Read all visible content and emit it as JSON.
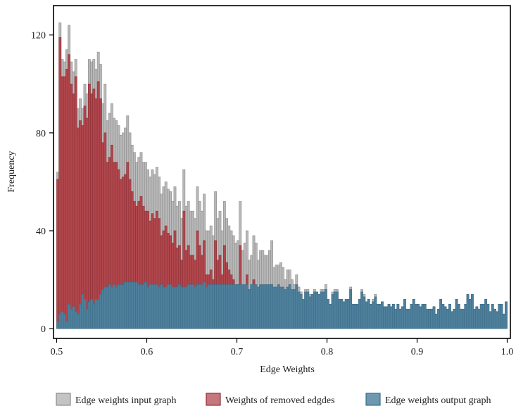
{
  "chart_data": {
    "type": "bar",
    "subtype": "overlapping-histogram",
    "title": "",
    "xlabel": "Edge Weights",
    "ylabel": "Frequency",
    "xlim": [
      0.4965,
      1.0035
    ],
    "ylim": [
      -4,
      132
    ],
    "x_ticks": [
      "0.5",
      "0.6",
      "0.7",
      "0.8",
      "0.9",
      "1.0"
    ],
    "x_tick_values": [
      0.5,
      0.6,
      0.7,
      0.8,
      0.9,
      1.0
    ],
    "y_ticks": [
      "0",
      "40",
      "80",
      "120"
    ],
    "y_tick_values": [
      0,
      40,
      80,
      120
    ],
    "bin_start": 0.5,
    "bin_width": 0.0025,
    "grid": false,
    "legend_position": "bottom",
    "series": [
      {
        "name": "Edge weights input graph",
        "color": "#a6a6a6",
        "values": [
          64,
          125,
          110,
          109,
          114,
          124,
          109,
          105,
          110,
          90,
          94,
          90,
          100,
          96,
          110,
          109,
          110,
          106,
          113,
          108,
          92,
          100,
          85,
          88,
          92,
          86,
          85,
          83,
          79,
          80,
          82,
          87,
          80,
          75,
          72,
          68,
          70,
          72,
          68,
          68,
          65,
          62,
          65,
          63,
          66,
          62,
          55,
          58,
          60,
          57,
          56,
          52,
          58,
          50,
          52,
          45,
          65,
          50,
          52,
          48,
          48,
          45,
          58,
          52,
          48,
          55,
          40,
          40,
          42,
          38,
          56,
          45,
          48,
          40,
          52,
          45,
          42,
          40,
          38,
          35,
          36,
          52,
          32,
          35,
          40,
          28,
          30,
          38,
          35,
          28,
          32,
          32,
          30,
          30,
          32,
          36,
          25,
          26,
          26,
          27,
          25,
          20,
          24,
          24,
          20,
          18,
          22,
          17,
          15,
          12,
          16,
          16,
          14,
          14,
          16,
          15,
          14,
          16,
          16,
          18,
          12,
          10,
          15,
          16,
          16,
          12,
          12,
          11,
          12,
          12,
          17,
          10,
          10,
          10,
          12,
          16,
          14,
          11,
          12,
          10,
          12,
          14,
          10,
          10,
          11,
          9,
          9,
          10,
          9,
          10,
          8,
          10,
          8,
          9,
          12,
          8,
          8,
          10,
          12,
          10,
          10,
          9,
          10,
          10,
          8,
          8,
          8,
          9,
          6,
          8,
          12,
          10,
          9,
          8,
          10,
          7,
          8,
          12,
          10,
          8,
          8,
          10,
          14,
          12,
          14,
          8,
          9,
          8,
          10,
          10,
          12,
          10,
          7,
          10,
          8,
          7,
          10,
          10,
          6,
          11
        ]
      },
      {
        "name": "Weights of removed edgdes",
        "color": "#b35a5e",
        "values": [
          61,
          119,
          103,
          103,
          106,
          112,
          100,
          96,
          103,
          82,
          85,
          83,
          91,
          86,
          100,
          96,
          98,
          94,
          101,
          94,
          76,
          80,
          68,
          70,
          75,
          68,
          68,
          65,
          61,
          62,
          63,
          68,
          61,
          56,
          52,
          50,
          52,
          54,
          50,
          48,
          48,
          44,
          47,
          45,
          48,
          45,
          38,
          40,
          42,
          39,
          38,
          35,
          40,
          33,
          34,
          28,
          48,
          32,
          34,
          30,
          30,
          28,
          40,
          34,
          30,
          36,
          22,
          22,
          24,
          20,
          36,
          28,
          30,
          22,
          34,
          27,
          24,
          22,
          20,
          17,
          18,
          34,
          14,
          17,
          22,
          12,
          12,
          20,
          17,
          11,
          14,
          14,
          12,
          12,
          14,
          18,
          8,
          9,
          8,
          10,
          8,
          4,
          6,
          6,
          4,
          2,
          4,
          2,
          1,
          0,
          1,
          1,
          1,
          0,
          1,
          0,
          0,
          1,
          1,
          2,
          0,
          0,
          1,
          1,
          1,
          0,
          0,
          0,
          0,
          0,
          1,
          0,
          0,
          0,
          0,
          1,
          1,
          0,
          0,
          0,
          1,
          1,
          0,
          0,
          0,
          0,
          0,
          0,
          0,
          0,
          0,
          0,
          0,
          0,
          0,
          0,
          0,
          0,
          0,
          0,
          0,
          0,
          0,
          0,
          0,
          0,
          0,
          0,
          0,
          0,
          0,
          0,
          0,
          0,
          0,
          0,
          0,
          0,
          0,
          0,
          0,
          0,
          0,
          0,
          0,
          0,
          0,
          0,
          0,
          0,
          0,
          0,
          0,
          0,
          0,
          0,
          0,
          0,
          0,
          0
        ]
      },
      {
        "name": "Edge weights output graph",
        "color": "#5b8faa",
        "values": [
          3,
          6,
          7,
          6,
          3,
          10,
          8,
          9,
          7,
          6,
          10,
          14,
          12,
          8,
          11,
          12,
          10,
          12,
          12,
          14,
          16,
          17,
          17,
          18,
          17,
          18,
          17,
          18,
          18,
          18,
          19,
          19,
          19,
          19,
          19,
          19,
          18,
          18,
          18,
          19,
          17,
          18,
          18,
          18,
          18,
          17,
          18,
          17,
          17,
          18,
          18,
          17,
          17,
          17,
          18,
          17,
          17,
          17,
          18,
          18,
          18,
          17,
          18,
          18,
          18,
          19,
          17,
          18,
          18,
          18,
          18,
          18,
          18,
          18,
          18,
          18,
          18,
          18,
          18,
          18,
          18,
          18,
          18,
          18,
          18,
          16,
          18,
          18,
          18,
          17,
          18,
          18,
          18,
          18,
          18,
          18,
          17,
          17,
          18,
          17,
          17,
          16,
          17,
          18,
          16,
          16,
          18,
          15,
          14,
          12,
          15,
          15,
          13,
          14,
          15,
          15,
          14,
          15,
          15,
          16,
          12,
          10,
          14,
          15,
          15,
          12,
          12,
          11,
          12,
          12,
          16,
          10,
          10,
          10,
          12,
          15,
          13,
          11,
          12,
          10,
          11,
          13,
          10,
          10,
          11,
          9,
          9,
          10,
          9,
          10,
          8,
          10,
          8,
          9,
          12,
          8,
          8,
          10,
          12,
          10,
          10,
          9,
          10,
          10,
          8,
          8,
          8,
          9,
          6,
          8,
          12,
          10,
          9,
          8,
          10,
          7,
          8,
          12,
          10,
          8,
          8,
          10,
          14,
          12,
          14,
          8,
          9,
          8,
          10,
          10,
          12,
          10,
          7,
          10,
          8,
          7,
          10,
          10,
          6,
          11
        ]
      }
    ]
  }
}
